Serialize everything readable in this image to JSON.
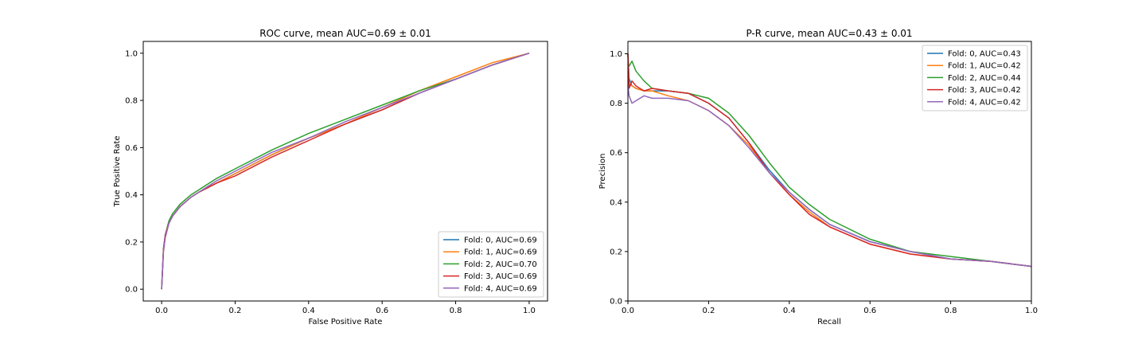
{
  "chart_data": [
    {
      "type": "line",
      "title": "ROC curve, mean AUC=0.69 ± 0.01",
      "xlabel": "False Positive Rate",
      "ylabel": "True Positive Rate",
      "xlim": [
        -0.05,
        1.05
      ],
      "ylim": [
        -0.05,
        1.05
      ],
      "xticks": [
        "0.0",
        "0.2",
        "0.4",
        "0.6",
        "0.8",
        "1.0"
      ],
      "yticks": [
        "0.0",
        "0.2",
        "0.4",
        "0.6",
        "0.8",
        "1.0"
      ],
      "grid": false,
      "legend_position": "lower right",
      "series": [
        {
          "name": "Fold: 0, AUC=0.69",
          "color": "#1f77b4",
          "x": [
            0,
            0.005,
            0.01,
            0.02,
            0.03,
            0.05,
            0.08,
            0.1,
            0.15,
            0.2,
            0.3,
            0.4,
            0.5,
            0.6,
            0.7,
            0.8,
            0.9,
            1.0
          ],
          "y": [
            0,
            0.17,
            0.23,
            0.28,
            0.31,
            0.35,
            0.39,
            0.41,
            0.45,
            0.49,
            0.57,
            0.64,
            0.7,
            0.76,
            0.83,
            0.89,
            0.95,
            1.0
          ]
        },
        {
          "name": "Fold: 1, AUC=0.69",
          "color": "#ff7f0e",
          "x": [
            0,
            0.005,
            0.01,
            0.02,
            0.03,
            0.05,
            0.08,
            0.1,
            0.15,
            0.2,
            0.3,
            0.4,
            0.5,
            0.6,
            0.7,
            0.8,
            0.9,
            1.0
          ],
          "y": [
            0,
            0.16,
            0.22,
            0.28,
            0.31,
            0.35,
            0.39,
            0.41,
            0.45,
            0.49,
            0.57,
            0.64,
            0.7,
            0.77,
            0.84,
            0.9,
            0.96,
            1.0
          ]
        },
        {
          "name": "Fold: 2, AUC=0.70",
          "color": "#2ca02c",
          "x": [
            0,
            0.005,
            0.01,
            0.02,
            0.03,
            0.05,
            0.08,
            0.1,
            0.15,
            0.2,
            0.3,
            0.4,
            0.5,
            0.6,
            0.7,
            0.8,
            0.9,
            1.0
          ],
          "y": [
            0,
            0.17,
            0.23,
            0.29,
            0.32,
            0.36,
            0.4,
            0.42,
            0.47,
            0.51,
            0.59,
            0.66,
            0.72,
            0.78,
            0.84,
            0.89,
            0.95,
            1.0
          ]
        },
        {
          "name": "Fold: 3, AUC=0.69",
          "color": "#d62728",
          "x": [
            0,
            0.005,
            0.01,
            0.02,
            0.03,
            0.05,
            0.08,
            0.1,
            0.15,
            0.2,
            0.3,
            0.4,
            0.5,
            0.6,
            0.7,
            0.8,
            0.9,
            1.0
          ],
          "y": [
            0,
            0.17,
            0.23,
            0.28,
            0.31,
            0.35,
            0.39,
            0.41,
            0.45,
            0.48,
            0.56,
            0.63,
            0.7,
            0.76,
            0.83,
            0.89,
            0.95,
            1.0
          ]
        },
        {
          "name": "Fold: 4, AUC=0.69",
          "color": "#9467bd",
          "x": [
            0,
            0.005,
            0.01,
            0.02,
            0.03,
            0.05,
            0.08,
            0.1,
            0.15,
            0.2,
            0.3,
            0.4,
            0.5,
            0.6,
            0.7,
            0.8,
            0.9,
            1.0
          ],
          "y": [
            0,
            0.16,
            0.22,
            0.28,
            0.31,
            0.35,
            0.39,
            0.41,
            0.46,
            0.5,
            0.58,
            0.64,
            0.71,
            0.77,
            0.83,
            0.89,
            0.95,
            1.0
          ]
        }
      ]
    },
    {
      "type": "line",
      "title": "P-R curve, mean AUC=0.43 ± 0.01",
      "xlabel": "Recall",
      "ylabel": "Precision",
      "xlim": [
        0,
        1.0
      ],
      "ylim": [
        0,
        1.05
      ],
      "xticks": [
        "0.0",
        "0.2",
        "0.4",
        "0.6",
        "0.8",
        "1.0"
      ],
      "yticks": [
        "0.0",
        "0.2",
        "0.4",
        "0.6",
        "0.8",
        "1.0"
      ],
      "grid": false,
      "legend_position": "upper right",
      "series": [
        {
          "name": "Fold: 0, AUC=0.43",
          "color": "#1f77b4",
          "x": [
            0,
            0.003,
            0.01,
            0.02,
            0.04,
            0.06,
            0.1,
            0.15,
            0.2,
            0.25,
            0.3,
            0.35,
            0.4,
            0.45,
            0.5,
            0.6,
            0.7,
            0.8,
            0.9,
            1.0
          ],
          "y": [
            1.0,
            0.9,
            0.87,
            0.86,
            0.85,
            0.85,
            0.85,
            0.84,
            0.8,
            0.74,
            0.64,
            0.53,
            0.44,
            0.37,
            0.31,
            0.24,
            0.2,
            0.17,
            0.16,
            0.14
          ]
        },
        {
          "name": "Fold: 1, AUC=0.42",
          "color": "#ff7f0e",
          "x": [
            0,
            0.003,
            0.01,
            0.02,
            0.04,
            0.06,
            0.1,
            0.15,
            0.2,
            0.25,
            0.3,
            0.35,
            0.4,
            0.45,
            0.5,
            0.6,
            0.7,
            0.8,
            0.9,
            1.0
          ],
          "y": [
            1.0,
            0.88,
            0.87,
            0.86,
            0.85,
            0.85,
            0.83,
            0.81,
            0.77,
            0.71,
            0.63,
            0.52,
            0.43,
            0.36,
            0.3,
            0.23,
            0.19,
            0.17,
            0.16,
            0.14
          ]
        },
        {
          "name": "Fold: 2, AUC=0.44",
          "color": "#2ca02c",
          "x": [
            0,
            0.003,
            0.01,
            0.02,
            0.04,
            0.06,
            0.1,
            0.15,
            0.2,
            0.25,
            0.3,
            0.35,
            0.4,
            0.45,
            0.5,
            0.6,
            0.7,
            0.8,
            0.9,
            1.0
          ],
          "y": [
            0.96,
            0.95,
            0.97,
            0.93,
            0.89,
            0.86,
            0.85,
            0.84,
            0.82,
            0.76,
            0.67,
            0.56,
            0.46,
            0.39,
            0.33,
            0.25,
            0.2,
            0.18,
            0.16,
            0.14
          ]
        },
        {
          "name": "Fold: 3, AUC=0.42",
          "color": "#d62728",
          "x": [
            0,
            0.003,
            0.01,
            0.02,
            0.04,
            0.06,
            0.1,
            0.15,
            0.2,
            0.25,
            0.3,
            0.35,
            0.4,
            0.45,
            0.5,
            0.6,
            0.7,
            0.8,
            0.9,
            1.0
          ],
          "y": [
            1.0,
            0.86,
            0.89,
            0.87,
            0.85,
            0.86,
            0.85,
            0.84,
            0.8,
            0.74,
            0.64,
            0.52,
            0.43,
            0.35,
            0.3,
            0.23,
            0.19,
            0.17,
            0.16,
            0.14
          ]
        },
        {
          "name": "Fold: 4, AUC=0.42",
          "color": "#9467bd",
          "x": [
            0,
            0.003,
            0.01,
            0.02,
            0.04,
            0.06,
            0.1,
            0.15,
            0.2,
            0.25,
            0.3,
            0.35,
            0.4,
            0.45,
            0.5,
            0.6,
            0.7,
            0.8,
            0.9,
            1.0
          ],
          "y": [
            0.87,
            0.83,
            0.8,
            0.81,
            0.83,
            0.82,
            0.82,
            0.81,
            0.77,
            0.71,
            0.62,
            0.52,
            0.44,
            0.37,
            0.31,
            0.24,
            0.2,
            0.17,
            0.16,
            0.14
          ]
        }
      ]
    }
  ]
}
